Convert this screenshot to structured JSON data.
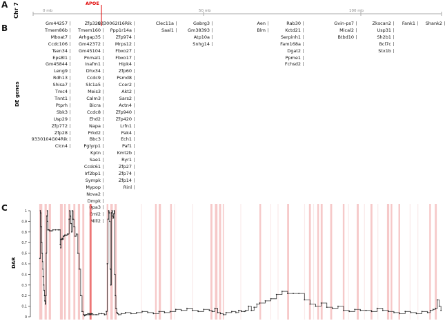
{
  "panels": {
    "a": "A",
    "b": "B",
    "c": "C"
  },
  "chromosome_label": "Chr 7",
  "marker_label": "APOE",
  "ruler": {
    "labels": [
      "0 mb",
      "50 mb",
      "100 mb"
    ],
    "positions_mb": [
      0,
      50,
      100
    ],
    "max_mb": 145
  },
  "de_genes_label": "DE genes",
  "gene_columns": [
    {
      "genes": [
        "Gm44257",
        "Tmem86b",
        "Mboat7",
        "Ccdc106",
        "Tsen34",
        "Eps8l1",
        "Gm45844",
        "Leng9",
        "Rdh13",
        "Shisa7",
        "Tmc4",
        "Tnnt1",
        "Ptprh",
        "Sbk3",
        "Usp29",
        "Zfp772",
        "Zfp28",
        "9330104G04Rik",
        "Clcn4"
      ]
    },
    {
      "genes": [
        "Zfp329",
        "Tmem160",
        "Arhgap35",
        "Gm42372",
        "Gm45104",
        "Pnmal1",
        "Inafm1",
        "Dhx34",
        "Ccdc9",
        "Slc1a5",
        "Meis3",
        "Calm3",
        "Bicra",
        "Ccdc8",
        "Ehd2",
        "Napa",
        "Prkd2",
        "Bbc3",
        "Pglyrp1",
        "Kptn",
        "Sae1",
        "Ccdc61",
        "Irf2bp1",
        "Sympk",
        "Mypop",
        "Nova2",
        "Dmpk",
        "Opa3",
        "Eml2",
        "Mill2"
      ]
    },
    {
      "genes": [
        "C230062I16Rik",
        "Ppp1r14a",
        "Zfp974",
        "Mrps12",
        "Fbxo27",
        "Fbxo17",
        "Hipk4",
        "Zfp60",
        "Psmd8",
        "Ccer2",
        "Akt2",
        "Sars2",
        "Actn4",
        "Zfp940",
        "Zfp420",
        "Lrfn1",
        "Pak4",
        "Ech1",
        "Paf1",
        "Kmt2b",
        "Ryr1",
        "Zfp27",
        "Zfp74",
        "Zfp14",
        "Rinl"
      ]
    },
    {
      "genes": [
        "Clec11a",
        "Saal1"
      ]
    },
    {
      "genes": [
        "Gabrg3",
        "Gm38393",
        "Atp10a",
        "Snhg14"
      ]
    },
    {
      "genes": [
        "Aen",
        "Blm"
      ]
    },
    {
      "genes": [
        "Rab30",
        "Kctd21",
        "Serpinh1",
        "Fam168a",
        "Dgat2",
        "Ppme1",
        "Fchsd2"
      ]
    },
    {
      "genes": [
        "Gvin-ps7",
        "Mical2",
        "Btbd10"
      ]
    },
    {
      "genes": [
        "Zkscan2",
        "Usp31",
        "Sh2b1",
        "Bcl7c",
        "Stx1b"
      ]
    },
    {
      "genes": [
        "Fank1"
      ]
    },
    {
      "genes": [
        "Shank2"
      ]
    }
  ],
  "chart_data": {
    "type": "line",
    "ylabel": "DAR",
    "ylim": [
      0,
      1
    ],
    "yticks": [
      "0",
      "0.1",
      "0.2",
      "0.3",
      "0.4",
      "0.5",
      "0.6",
      "0.7",
      "0.8",
      "0.9",
      "1"
    ],
    "xlim_mb": [
      0,
      145
    ],
    "apoe_mb": 19.7,
    "highlight_regions_mb": [
      [
        1.2,
        2.3
      ],
      [
        3.1,
        3.9
      ],
      [
        4.6,
        5.4
      ],
      [
        8.6,
        9.6
      ],
      [
        10.1,
        10.7
      ],
      [
        11.6,
        12.3
      ],
      [
        13.4,
        14.1
      ],
      [
        15.0,
        15.8
      ],
      [
        16.6,
        17.3
      ],
      [
        19.0,
        19.6
      ],
      [
        25.3,
        25.9
      ],
      [
        26.6,
        27.5
      ],
      [
        28.1,
        28.9
      ],
      [
        42.6,
        43.2
      ],
      [
        43.9,
        44.7
      ],
      [
        48.0,
        48.6
      ],
      [
        62.4,
        63.1
      ],
      [
        64.0,
        64.9
      ],
      [
        65.5,
        66.2
      ],
      [
        66.8,
        67.2
      ],
      [
        79.9,
        80.5
      ],
      [
        89.8,
        90.5
      ],
      [
        97.6,
        98.3
      ],
      [
        100.6,
        101.2
      ],
      [
        101.8,
        102.5
      ],
      [
        105.2,
        105.9
      ],
      [
        109.7,
        110.3
      ],
      [
        114.7,
        115.4
      ],
      [
        119.6,
        120.3
      ],
      [
        125.5,
        126.3
      ],
      [
        126.8,
        127.4
      ],
      [
        129.6,
        130.2
      ],
      [
        140.6,
        141.2
      ],
      [
        142.6,
        143.3
      ]
    ],
    "light_regions_mb": [
      [
        37.6,
        37.9
      ],
      [
        49.5,
        49.8
      ],
      [
        55.9,
        56.2
      ],
      [
        73.1,
        73.4
      ],
      [
        83.8,
        84.1
      ],
      [
        86.4,
        86.7
      ],
      [
        95.9,
        96.2
      ],
      [
        99.1,
        99.4
      ],
      [
        111.6,
        111.9
      ],
      [
        117.3,
        117.6
      ],
      [
        122.1,
        122.4
      ],
      [
        133.6,
        133.9
      ],
      [
        136.4,
        136.7
      ]
    ],
    "series": [
      {
        "x": [
          1.4,
          1.6,
          1.7,
          1.9,
          2.1,
          2.2,
          2.4,
          2.5,
          2.6,
          2.8,
          2.9,
          3.1,
          3.2,
          3.4,
          3.6,
          3.7,
          3.9,
          4.1,
          4.2,
          4.3,
          4.5,
          4.7,
          4.9,
          5.2,
          5.6,
          6.1,
          7.0,
          8.0,
          8.6,
          8.7,
          8.9,
          9.0,
          9.2,
          9.4,
          9.6,
          9.8,
          10.0,
          10.3,
          10.6,
          10.9,
          11.3,
          11.6,
          11.9,
          12.1,
          12.3,
          12.5,
          12.8,
          13.0,
          13.3,
          13.6,
          14.0,
          14.5,
          15.0,
          15.5,
          16.0,
          16.5,
          17.0,
          17.4,
          17.8,
          18.2,
          18.6,
          19.0,
          19.3,
          19.6,
          19.9,
          20.4,
          21.5,
          22.5,
          23.5,
          24.5,
          25.2,
          25.5,
          25.8,
          26.0,
          26.2,
          26.4,
          26.6,
          26.8,
          27.0,
          27.2,
          27.4,
          27.6,
          27.8,
          28.0,
          28.2,
          28.4,
          28.6,
          28.9,
          29.2,
          29.6,
          30.5,
          32,
          34,
          36,
          38,
          40,
          42,
          44,
          46,
          48,
          50,
          52,
          54,
          56,
          58,
          60,
          62,
          63,
          64,
          65,
          66,
          67,
          68,
          70,
          71.5,
          72.5,
          73.5,
          74.5,
          75,
          76,
          77,
          78,
          79,
          80,
          82,
          84,
          86,
          88,
          90,
          92,
          94,
          96,
          98,
          100,
          102,
          104,
          106,
          108,
          110,
          112,
          114,
          116,
          118,
          120,
          122,
          124,
          126,
          128,
          130,
          132,
          134,
          136,
          138,
          140,
          141,
          142,
          142.8,
          143.5,
          144.2,
          144.8
        ],
        "y": [
          0.55,
          1.0,
          0.98,
          0.85,
          0.7,
          0.6,
          0.52,
          0.45,
          0.38,
          0.3,
          0.25,
          0.2,
          0.15,
          0.12,
          0.2,
          0.6,
          0.95,
          1.0,
          0.9,
          0.82,
          0.82,
          0.82,
          0.81,
          0.81,
          0.81,
          0.82,
          0.82,
          0.82,
          0.82,
          0.68,
          0.65,
          0.73,
          0.73,
          0.74,
          0.73,
          0.76,
          0.76,
          0.77,
          0.77,
          0.77,
          0.78,
          0.78,
          0.92,
          1.0,
          0.95,
          0.88,
          0.8,
          1.0,
          0.92,
          0.85,
          0.76,
          0.78,
          0.6,
          0.45,
          0.2,
          0.05,
          0.02,
          0.01,
          0.02,
          0.02,
          0.03,
          0.02,
          0.03,
          0.02,
          0.03,
          0.02,
          0.02,
          0.03,
          0.03,
          0.02,
          0.05,
          0.5,
          0.92,
          1.0,
          0.98,
          0.9,
          0.45,
          0.3,
          0.98,
          1.0,
          0.95,
          0.93,
          0.97,
          1.0,
          0.4,
          0.2,
          0.08,
          0.04,
          0.03,
          0.02,
          0.03,
          0.04,
          0.03,
          0.04,
          0.05,
          0.04,
          0.03,
          0.05,
          0.04,
          0.05,
          0.07,
          0.06,
          0.08,
          0.06,
          0.05,
          0.07,
          0.06,
          0.05,
          0.08,
          0.04,
          0.03,
          0.02,
          0.04,
          0.05,
          0.04,
          0.06,
          0.05,
          0.05,
          0.06,
          0.1,
          0.06,
          0.09,
          0.12,
          0.13,
          0.15,
          0.17,
          0.21,
          0.24,
          0.22,
          0.22,
          0.22,
          0.16,
          0.12,
          0.1,
          0.13,
          0.09,
          0.08,
          0.1,
          0.06,
          0.05,
          0.07,
          0.06,
          0.06,
          0.05,
          0.08,
          0.06,
          0.05,
          0.04,
          0.03,
          0.05,
          0.04,
          0.03,
          0.05,
          0.04,
          0.06,
          0.07,
          0.08,
          0.16,
          0.1,
          0.06
        ]
      }
    ]
  }
}
